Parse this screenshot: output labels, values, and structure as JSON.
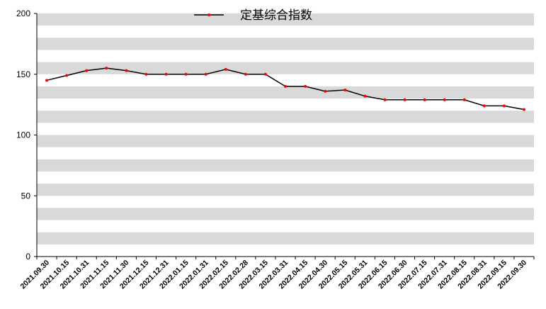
{
  "chart_data": {
    "type": "line",
    "title": "",
    "xlabel": "",
    "ylabel": "",
    "ylim": [
      0,
      200
    ],
    "yticks": [
      0,
      50,
      100,
      150,
      200
    ],
    "grid": "alternating-horizontal-bands",
    "legend_position": "top-center",
    "categories": [
      "2021.09.30",
      "2021.10.15",
      "2021.10.31",
      "2021.11.15",
      "2021.11.30",
      "2021.12.15",
      "2021.12.31",
      "2022.01.15",
      "2022.01.31",
      "2022.02.15",
      "2022.02.28",
      "2022.03.15",
      "2022.03.31",
      "2022.04.15",
      "2022.04.30",
      "2022.05.15",
      "2022.05.31",
      "2022.06.15",
      "2022.06.30",
      "2022.07.15",
      "2022.07.31",
      "2022.08.15",
      "2022.08.31",
      "2022.09.15",
      "2022.09.30"
    ],
    "series": [
      {
        "name": "定基综合指数",
        "color": "#000000",
        "marker_color": "#ff0000",
        "values": [
          145,
          149,
          153,
          155,
          153,
          150,
          150,
          150,
          150,
          154,
          150,
          150,
          140,
          140,
          136,
          137,
          132,
          129,
          129,
          129,
          129,
          129,
          124,
          124,
          121
        ]
      }
    ]
  }
}
